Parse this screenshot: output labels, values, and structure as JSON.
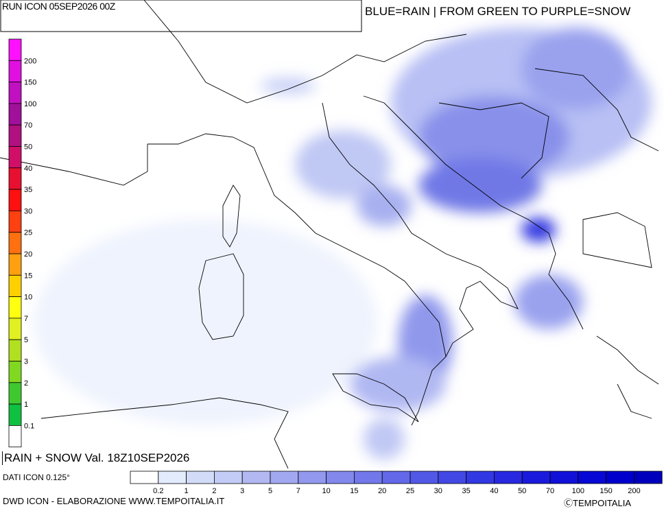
{
  "header": {
    "run": "RUN ICON 05SEP2026 00Z",
    "legend_title": "BLUE=RAIN | FROM GREEN TO PURPLE=SNOW"
  },
  "snow_scale": {
    "labels": [
      "200",
      "150",
      "100",
      "70",
      "50",
      "40",
      "35",
      "30",
      "25",
      "20",
      "15",
      "10",
      "7",
      "5",
      "3",
      "2",
      "1",
      "0.1"
    ],
    "colors": [
      "#ff10ff",
      "#e010e0",
      "#c010c0",
      "#a0109a",
      "#b01080",
      "#d01068",
      "#e81030",
      "#ff1010",
      "#ff4010",
      "#ff7010",
      "#ffa010",
      "#ffd000",
      "#ffff10",
      "#e0f020",
      "#b0e020",
      "#80d820",
      "#40c830",
      "#10c040",
      "#ffffff"
    ]
  },
  "map": {
    "caption": "RAIN + SNOW Val. 18Z10SEP2026"
  },
  "footer": {
    "data_source": "DATI ICON 0.125°",
    "credit": "DWD ICON - ELABORAZIONE WWW.TEMPOITALIA.IT",
    "copyright": "ⒸTEMPOITALIA"
  },
  "rain_scale": {
    "labels": [
      "0.2",
      "1",
      "2",
      "3",
      "5",
      "7",
      "10",
      "15",
      "20",
      "25",
      "30",
      "35",
      "40",
      "50",
      "70",
      "100",
      "150",
      "200"
    ],
    "colors": [
      "#ffffff",
      "#e2ecfc",
      "#d2dcf8",
      "#c2ccf6",
      "#b2b8f2",
      "#a2a8f0",
      "#9298ee",
      "#8288ec",
      "#7278ea",
      "#6268e8",
      "#5258e6",
      "#4248e4",
      "#3238e2",
      "#2828e0",
      "#1a1adc",
      "#1010d8",
      "#0808d4",
      "#0000cc",
      "#0000bc"
    ]
  }
}
